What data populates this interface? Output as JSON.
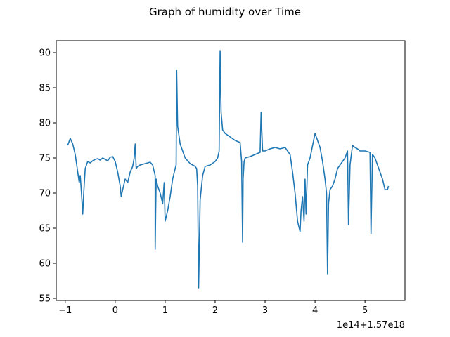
{
  "chart_data": {
    "type": "line",
    "title": "Graph of humidity over Time",
    "xlabel": "",
    "ylabel": "",
    "x_offset_label": "1e14+1.57e18",
    "xlim": [
      -1.18,
      5.8
    ],
    "ylim": [
      54.7,
      91.7
    ],
    "grid": false,
    "legend": "none",
    "x_ticks": [
      -1,
      0,
      1,
      2,
      3,
      4,
      5
    ],
    "x_tick_labels": [
      "−1",
      "0",
      "1",
      "2",
      "3",
      "4",
      "5"
    ],
    "y_ticks": [
      55,
      60,
      65,
      70,
      75,
      80,
      85,
      90
    ],
    "y_tick_labels": [
      "55",
      "60",
      "65",
      "70",
      "75",
      "80",
      "85",
      "90"
    ],
    "series": [
      {
        "color": "#1f77b4",
        "x": [
          -0.95,
          -0.9,
          -0.85,
          -0.8,
          -0.75,
          -0.72,
          -0.7,
          -0.68,
          -0.65,
          -0.63,
          -0.6,
          -0.55,
          -0.5,
          -0.45,
          -0.4,
          -0.35,
          -0.3,
          -0.25,
          -0.2,
          -0.15,
          -0.1,
          -0.05,
          0.0,
          0.05,
          0.1,
          0.12,
          0.15,
          0.2,
          0.25,
          0.3,
          0.35,
          0.38,
          0.4,
          0.42,
          0.45,
          0.5,
          0.6,
          0.7,
          0.75,
          0.8,
          0.8,
          0.82,
          0.85,
          0.9,
          0.95,
          0.98,
          1.0,
          1.05,
          1.1,
          1.15,
          1.2,
          1.22,
          1.23,
          1.25,
          1.3,
          1.4,
          1.5,
          1.6,
          1.63,
          1.65,
          1.67,
          1.7,
          1.75,
          1.8,
          1.9,
          2.0,
          2.05,
          2.08,
          2.1,
          2.12,
          2.15,
          2.2,
          2.3,
          2.4,
          2.5,
          2.53,
          2.55,
          2.56,
          2.58,
          2.6,
          2.7,
          2.8,
          2.9,
          2.92,
          2.95,
          3.0,
          3.1,
          3.2,
          3.3,
          3.4,
          3.5,
          3.55,
          3.6,
          3.65,
          3.7,
          3.72,
          3.75,
          3.78,
          3.8,
          3.82,
          3.85,
          3.9,
          4.0,
          4.05,
          4.1,
          4.15,
          4.2,
          4.23,
          4.25,
          4.27,
          4.3,
          4.35,
          4.4,
          4.45,
          4.5,
          4.55,
          4.6,
          4.65,
          4.67,
          4.7,
          4.75,
          4.8,
          4.85,
          4.9,
          5.0,
          5.1,
          5.12,
          5.15,
          5.2,
          5.25,
          5.3,
          5.35,
          5.4,
          5.45,
          5.47
        ],
        "y": [
          76.8,
          77.8,
          77.0,
          75.5,
          73.0,
          71.5,
          72.5,
          70.5,
          67.0,
          70.0,
          73.5,
          74.5,
          74.3,
          74.6,
          74.8,
          74.9,
          74.7,
          75.0,
          74.8,
          74.6,
          75.1,
          75.2,
          74.5,
          73.0,
          71.0,
          69.5,
          70.5,
          72.0,
          71.5,
          73.0,
          73.8,
          75.0,
          77.0,
          73.5,
          73.8,
          74.0,
          74.2,
          74.4,
          74.0,
          72.5,
          62.0,
          72.0,
          71.0,
          70.0,
          68.5,
          71.5,
          66.0,
          67.5,
          69.5,
          72.0,
          73.5,
          74.0,
          87.5,
          79.5,
          77.0,
          75.0,
          74.2,
          73.8,
          73.5,
          71.0,
          56.5,
          69.0,
          72.5,
          73.8,
          74.0,
          74.5,
          75.0,
          76.0,
          90.3,
          81.5,
          79.0,
          78.5,
          78.0,
          77.5,
          77.2,
          74.5,
          63.0,
          72.0,
          74.5,
          75.0,
          75.2,
          75.5,
          75.8,
          81.5,
          76.0,
          76.0,
          76.3,
          76.5,
          76.3,
          76.5,
          75.5,
          73.0,
          70.0,
          66.0,
          64.5,
          67.5,
          69.5,
          66.0,
          72.0,
          67.0,
          74.0,
          75.0,
          78.5,
          77.5,
          76.5,
          74.5,
          72.0,
          70.0,
          58.5,
          68.5,
          70.5,
          71.0,
          72.0,
          73.5,
          74.0,
          74.5,
          75.0,
          76.0,
          65.5,
          74.0,
          76.8,
          76.5,
          76.3,
          76.0,
          76.0,
          75.8,
          64.2,
          75.5,
          75.0,
          74.0,
          73.0,
          72.0,
          70.5,
          70.5,
          71.0
        ]
      }
    ]
  }
}
